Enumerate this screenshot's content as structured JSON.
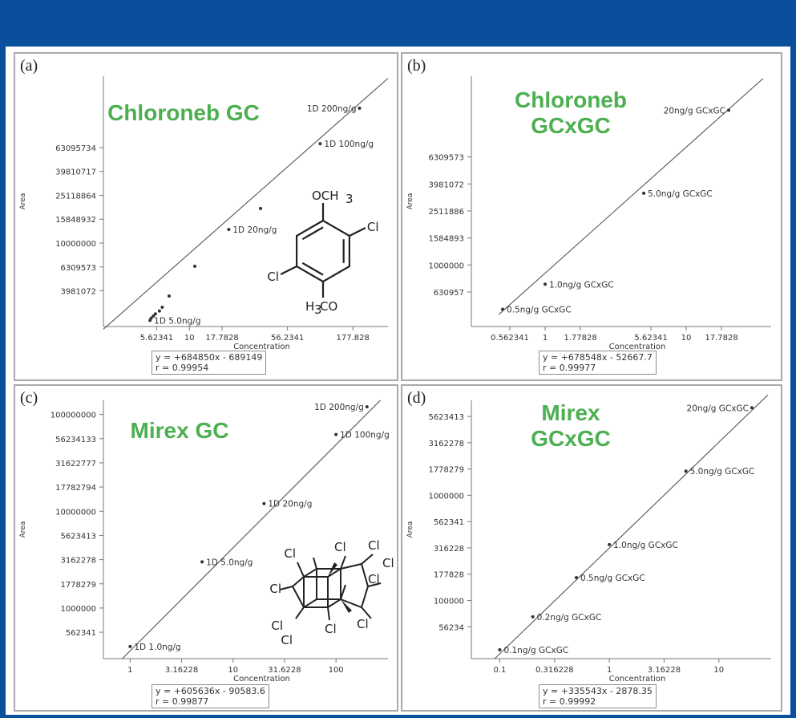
{
  "chart_data": [
    {
      "type": "scatter",
      "panel_label": "(a)",
      "title": "Chloroneb GC",
      "xlabel": "Concentration",
      "ylabel": "Area",
      "x_scale": "log",
      "y_scale": "log",
      "xlim": [
        2.2,
        330
      ],
      "ylim": [
        2000000,
        250000000
      ],
      "x_ticks": [
        5.62341,
        10,
        17.7828,
        56.2341,
        177.828
      ],
      "x_tick_labels": [
        "5.62341",
        "10",
        "17.7828",
        "56.2341",
        "177.828"
      ],
      "y_ticks": [
        3981072,
        6309573,
        10000000,
        15848932,
        25118864,
        39810717,
        63095734
      ],
      "y_tick_labels": [
        "3981072",
        "6309573",
        "10000000",
        "15848932",
        "25118864",
        "39810717",
        "63095734"
      ],
      "series": [
        {
          "x": [
            5.0,
            5.1,
            5.3,
            5.5,
            5.9,
            6.2,
            7.0,
            11.0,
            20.0,
            35.0,
            100.0,
            200.0
          ],
          "y": [
            2250000,
            2350000,
            2450000,
            2550000,
            2700000,
            2900000,
            3600000,
            6400000,
            13000000,
            19500000,
            68000000,
            135000000
          ]
        }
      ],
      "point_labels": [
        {
          "x": 5.0,
          "y": 2250000,
          "text": "1D 5.0ng/g"
        },
        {
          "x": 20.0,
          "y": 13000000,
          "text": "1D 20ng/g"
        },
        {
          "x": 100.0,
          "y": 68000000,
          "text": "1D 100ng/g"
        },
        {
          "x": 200.0,
          "y": 135000000,
          "text": "1D 200ng/g"
        }
      ],
      "fit_line": {
        "x": [
          2.2,
          330
        ],
        "y": [
          1900000,
          240000000
        ]
      },
      "equation": "y = +684850x - 689149",
      "r": "r = 0.99954",
      "molecule": "chloroneb"
    },
    {
      "type": "scatter",
      "panel_label": "(b)",
      "title": "Chloroneb GCxGC",
      "xlabel": "Concentration",
      "ylabel": "Area",
      "x_scale": "log",
      "y_scale": "log",
      "xlim": [
        0.3,
        40
      ],
      "ylim": [
        350000,
        25000000
      ],
      "x_ticks": [
        0.562341,
        1,
        1.77828,
        5.62341,
        10,
        17.7828
      ],
      "x_tick_labels": [
        "0.562341",
        "1",
        "1.77828",
        "5.62341",
        "10",
        "17.7828"
      ],
      "y_ticks": [
        630957,
        1000000,
        1584893,
        2511886,
        3981072,
        6309573
      ],
      "y_tick_labels": [
        "630957",
        "1000000",
        "1584893",
        "2511886",
        "3981072",
        "6309573"
      ],
      "series": [
        {
          "x": [
            0.5,
            1.0,
            5.0,
            20.0
          ],
          "y": [
            470000,
            720000,
            3400000,
            14000000
          ]
        }
      ],
      "point_labels": [
        {
          "x": 0.5,
          "y": 470000,
          "text": "0.5ng/g GCxGC"
        },
        {
          "x": 1.0,
          "y": 720000,
          "text": "1.0ng/g GCxGC"
        },
        {
          "x": 5.0,
          "y": 3400000,
          "text": "5.0ng/g GCxGC"
        },
        {
          "x": 20.0,
          "y": 14000000,
          "text": "20ng/g GCxGC"
        }
      ],
      "fit_line": {
        "x": [
          0.47,
          35
        ],
        "y": [
          430000,
          24000000
        ]
      },
      "equation": "y = +678548x - 52667.7",
      "r": "r = 0.99977"
    },
    {
      "type": "scatter",
      "panel_label": "(c)",
      "title": "Mirex GC",
      "xlabel": "Concentration",
      "ylabel": "Area",
      "x_scale": "log",
      "y_scale": "log",
      "xlim": [
        0.55,
        320
      ],
      "ylim": [
        300000,
        140000000
      ],
      "x_ticks": [
        1,
        3.16228,
        10,
        31.6228,
        100
      ],
      "x_tick_labels": [
        "1",
        "3.16228",
        "10",
        "31.6228",
        "100"
      ],
      "y_ticks": [
        562341,
        1000000,
        1778279,
        3162278,
        5623413,
        10000000,
        17782794,
        31622777,
        56234133,
        100000000
      ],
      "y_tick_labels": [
        "562341",
        "1000000",
        "1778279",
        "3162278",
        "5623413",
        "10000000",
        "17782794",
        "31622777",
        "56234133",
        "100000000"
      ],
      "series": [
        {
          "x": [
            1.0,
            5.0,
            20.0,
            100.0,
            200.0
          ],
          "y": [
            400000,
            3000000,
            12000000,
            62000000,
            120000000
          ]
        }
      ],
      "point_labels": [
        {
          "x": 1.0,
          "y": 400000,
          "text": "1D 1.0ng/g"
        },
        {
          "x": 5.0,
          "y": 3000000,
          "text": "1D 5.0ng/g"
        },
        {
          "x": 20.0,
          "y": 12000000,
          "text": "1D 20ng/g"
        },
        {
          "x": 100.0,
          "y": 62000000,
          "text": "1D 100ng/g"
        },
        {
          "x": 200.0,
          "y": 120000000,
          "text": "1D 200ng/g"
        }
      ],
      "fit_line": {
        "x": [
          0.84,
          270
        ],
        "y": [
          300000,
          140000000
        ]
      },
      "equation": "y = +605636x - 90583.6",
      "r": "r = 0.99877",
      "molecule": "mirex"
    },
    {
      "type": "scatter",
      "panel_label": "(d)",
      "title": "Mirex GCxGC",
      "xlabel": "Concentration",
      "ylabel": "Area",
      "x_scale": "log",
      "y_scale": "log",
      "xlim": [
        0.055,
        30
      ],
      "ylim": [
        28000,
        8000000
      ],
      "x_ticks": [
        0.1,
        0.316228,
        1,
        3.16228,
        10
      ],
      "x_tick_labels": [
        "0.1",
        "0.316228",
        "1",
        "3.16228",
        "10"
      ],
      "y_ticks": [
        56234,
        100000,
        177828,
        316228,
        562341,
        1000000,
        1778279,
        3162278,
        5623413
      ],
      "y_tick_labels": [
        "56234",
        "100000",
        "177828",
        "316228",
        "562341",
        "1000000",
        "1778279",
        "3162278",
        "5623413"
      ],
      "series": [
        {
          "x": [
            0.1,
            0.2,
            0.5,
            1.0,
            5.0,
            20.0
          ],
          "y": [
            34000,
            70000,
            165000,
            340000,
            1700000,
            6800000
          ]
        }
      ],
      "point_labels": [
        {
          "x": 0.1,
          "y": 34000,
          "text": "0.1ng/g GCxGC"
        },
        {
          "x": 0.2,
          "y": 70000,
          "text": "0.2ng/g GCxGC"
        },
        {
          "x": 0.5,
          "y": 165000,
          "text": "0.5ng/g GCxGC"
        },
        {
          "x": 1.0,
          "y": 340000,
          "text": "1.0ng/g GCxGC"
        },
        {
          "x": 5.0,
          "y": 1700000,
          "text": "5.0ng/g GCxGC"
        },
        {
          "x": 20.0,
          "y": 6800000,
          "text": "20ng/g GCxGC"
        }
      ],
      "fit_line": {
        "x": [
          0.09,
          28
        ],
        "y": [
          28000,
          9000000
        ]
      },
      "equation": "y = +335543x - 2878.35",
      "r": "r = 0.99992"
    }
  ],
  "colors": {
    "frame": "#0a4f9b",
    "title_green": "#4caf50",
    "panel_border": "#a9a9a9",
    "ink": "#333333"
  },
  "molecule_labels": {
    "chloroneb_top": "OCH",
    "chloroneb_top_sub": "3",
    "chloroneb_bottom_pre": "H",
    "chloroneb_bottom_sub": "3",
    "chloroneb_bottom_post": "CO",
    "cl": "Cl"
  }
}
